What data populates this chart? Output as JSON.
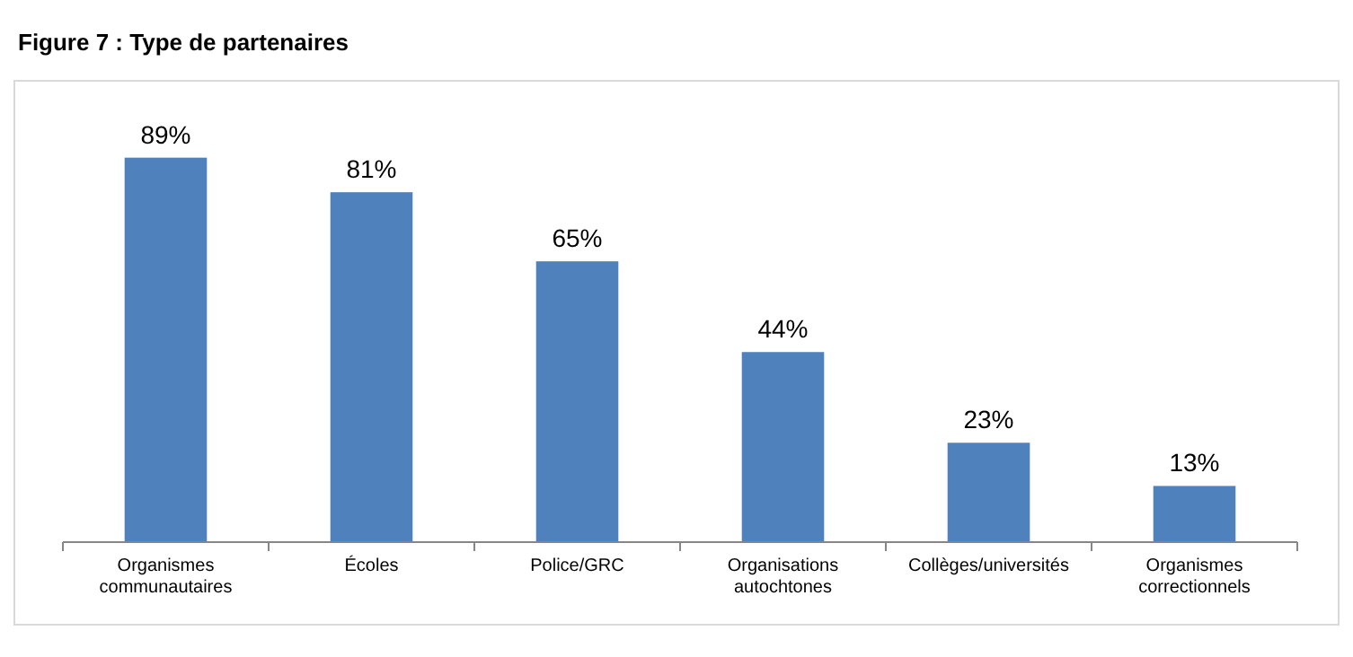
{
  "chart_data": {
    "type": "bar",
    "title": "Figure 7 : Type de partenaires",
    "categories": [
      "Organismes communautaires",
      "Écoles",
      "Police/GRC",
      "Organisations autochtones",
      "Collèges/universités",
      "Organismes correctionnels"
    ],
    "values": [
      89,
      81,
      65,
      44,
      23,
      13
    ],
    "value_labels": [
      "89%",
      "81%",
      "65%",
      "44%",
      "23%",
      "13%"
    ],
    "color": "#4f81bd"
  }
}
